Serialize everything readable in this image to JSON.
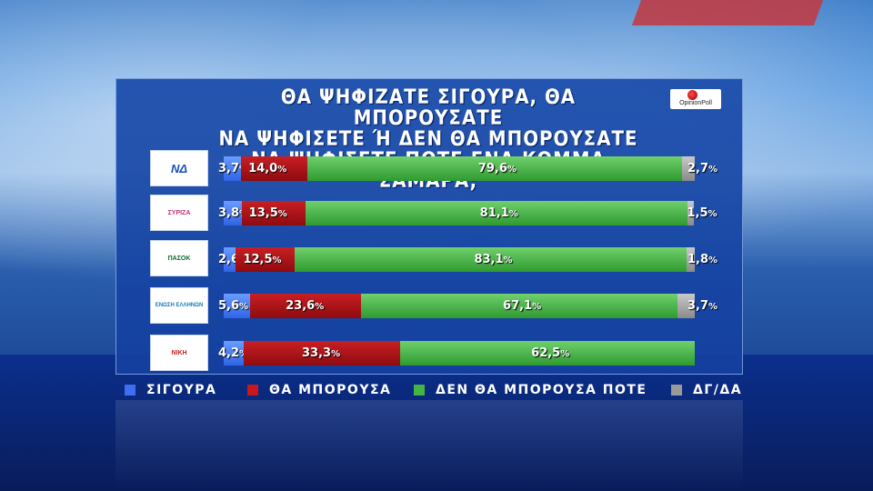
{
  "title_lines": [
    "ΘΑ ΨΗΦΙΖΑΤΕ ΣΙΓΟΥΡΑ, ΘΑ ΜΠΟΡΟΥΣΑΤΕ",
    "ΝΑ ΨΗΦΙΣΕΤΕ Ή ΔΕΝ ΘΑ ΜΠΟΡΟΥΣΑΤΕ",
    "ΝΑ ΨΗΦΙΣΕΤΕ ΠΟΤΕ ΕΝΑ ΚΟΜΜΑ ΣΑΜΑΡΑ;"
  ],
  "brand": "OpinionPoll",
  "logos": [
    "ΝΔ",
    "ΣΥΡΙΖΑ",
    "ΠΑΣΟΚ",
    "ΕΝΩΣΗ ΕΛΛΗΝΩΝ",
    "ΝΙΚΗ"
  ],
  "colors": {
    "sigoura": "#3f6ff0",
    "tha_mporousa": "#b3151a",
    "den_tha_mporousa": "#44b544",
    "dg_da": "#a8a8a8"
  },
  "legend": [
    "ΣΙΓΟΥΡΑ",
    "ΘΑ ΜΠΟΡΟΥΣΑ",
    "ΔΕΝ ΘΑ ΜΠΟΡΟΥΣΑ ΠΟΤΕ",
    "ΔΓ/ΔΑ"
  ],
  "chart_data": {
    "type": "bar",
    "orientation": "horizontal-stacked",
    "series": [
      {
        "name": "ΣΙΓΟΥΡΑ",
        "values": [
          3.7,
          3.8,
          2.6,
          5.6,
          4.2
        ],
        "labels": [
          "3,7",
          "3,8",
          "2,6",
          "5,6",
          "4,2"
        ]
      },
      {
        "name": "ΘΑ ΜΠΟΡΟΥΣΑ",
        "values": [
          14.0,
          13.5,
          12.5,
          23.6,
          33.3
        ],
        "labels": [
          "14,0",
          "13,5",
          "12,5",
          "23,6",
          "33,3"
        ]
      },
      {
        "name": "ΔΕΝ ΘΑ ΜΠΟΡΟΥΣΑ ΠΟΤΕ",
        "values": [
          79.6,
          81.1,
          83.1,
          67.1,
          62.5
        ],
        "labels": [
          "79,6",
          "81,1",
          "83,1",
          "67,1",
          "62,5"
        ]
      },
      {
        "name": "ΔΓ/ΔΑ",
        "values": [
          2.7,
          1.5,
          1.8,
          3.7,
          0
        ],
        "labels": [
          "2,7",
          "1,5",
          "1,8",
          "3,7",
          ""
        ]
      }
    ],
    "unit": "%"
  }
}
